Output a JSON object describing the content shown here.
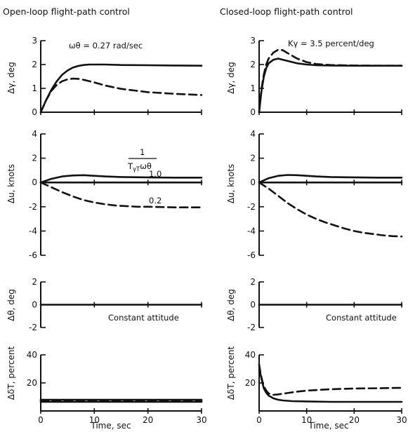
{
  "titles": {
    "left": "Open-loop flight-path control",
    "right": "Closed-loop flight-path control"
  },
  "x_axis": {
    "label": "Time, sec",
    "ticks": [
      "0",
      "10",
      "20",
      "30"
    ]
  },
  "chart_data": [
    {
      "id": "ol-gamma",
      "type": "line",
      "column": "left",
      "ylabel": "Δγ, deg",
      "ylim": [
        0,
        3
      ],
      "yticks": [
        "0",
        "1",
        "2",
        "3"
      ],
      "xlim": [
        0,
        30
      ],
      "annotations": [
        {
          "text": "ωθ = 0.27 rad/sec"
        }
      ],
      "series": [
        {
          "style": "solid",
          "x": [
            0,
            1,
            2,
            3,
            4,
            5,
            6,
            7,
            8,
            9,
            10,
            12,
            15,
            20,
            25,
            30
          ],
          "y": [
            0,
            0.5,
            0.95,
            1.3,
            1.57,
            1.75,
            1.87,
            1.94,
            1.98,
            2.0,
            2.0,
            2.0,
            1.98,
            1.97,
            1.96,
            1.95
          ]
        },
        {
          "style": "dashed",
          "x": [
            0,
            1,
            2,
            3,
            4,
            5,
            6,
            7,
            8,
            10,
            12,
            15,
            20,
            25,
            30
          ],
          "y": [
            0,
            0.5,
            0.9,
            1.15,
            1.3,
            1.38,
            1.41,
            1.4,
            1.36,
            1.25,
            1.12,
            0.98,
            0.84,
            0.77,
            0.72
          ]
        }
      ]
    },
    {
      "id": "ol-u",
      "type": "line",
      "column": "left",
      "ylabel": "Δu, knots",
      "ylim": [
        -6,
        4
      ],
      "yticks": [
        "-6",
        "-4",
        "-2",
        "0",
        "2",
        "4"
      ],
      "xlim": [
        0,
        30
      ],
      "annotations": [
        {
          "text": "1.0"
        },
        {
          "text": "0.2"
        }
      ],
      "series": [
        {
          "style": "solid",
          "x": [
            0,
            2,
            4,
            6,
            8,
            10,
            12,
            15,
            20,
            25,
            30
          ],
          "y": [
            0,
            0.3,
            0.5,
            0.58,
            0.6,
            0.55,
            0.5,
            0.45,
            0.42,
            0.4,
            0.4
          ]
        },
        {
          "style": "solid",
          "x": [
            0,
            2,
            5,
            10,
            20,
            30
          ],
          "y": [
            0,
            0,
            0,
            0,
            0,
            0
          ]
        },
        {
          "style": "dashed",
          "x": [
            0,
            2,
            4,
            6,
            8,
            10,
            12,
            14,
            16,
            18,
            20,
            25,
            30
          ],
          "y": [
            0,
            -0.4,
            -0.8,
            -1.15,
            -1.45,
            -1.65,
            -1.8,
            -1.9,
            -1.95,
            -2.0,
            -2.0,
            -2.05,
            -2.05
          ]
        }
      ]
    },
    {
      "id": "ol-theta",
      "type": "line",
      "column": "left",
      "ylabel": "Δθ, deg",
      "ylim": [
        -2,
        2
      ],
      "yticks": [
        "-2",
        "0",
        "2"
      ],
      "xlim": [
        0,
        30
      ],
      "annotations": [
        {
          "text": "Constant attitude"
        }
      ],
      "series": [
        {
          "style": "solid",
          "x": [
            0,
            30
          ],
          "y": [
            0,
            0
          ]
        }
      ]
    },
    {
      "id": "ol-delta",
      "type": "line",
      "column": "left",
      "ylabel": "ΔδT, percent",
      "ylim": [
        0,
        40
      ],
      "yticks": [
        "20",
        "40"
      ],
      "xlim": [
        0,
        30
      ],
      "series": [
        {
          "style": "solid",
          "x": [
            0,
            30
          ],
          "y": [
            6.5,
            6.5
          ]
        },
        {
          "style": "solid",
          "x": [
            0,
            30
          ],
          "y": [
            8,
            8
          ]
        },
        {
          "style": "dashed",
          "x": [
            0,
            30
          ],
          "y": [
            7.2,
            7.2
          ]
        }
      ]
    },
    {
      "id": "cl-gamma",
      "type": "line",
      "column": "right",
      "ylabel": "Δγ, deg",
      "ylim": [
        0,
        3
      ],
      "yticks": [
        "0",
        "1",
        "2",
        "3"
      ],
      "xlim": [
        0,
        30
      ],
      "annotations": [
        {
          "text": "Kγ = 3.5 percent/deg"
        }
      ],
      "series": [
        {
          "style": "solid",
          "x": [
            0,
            0.5,
            1,
            1.5,
            2,
            3,
            4,
            5,
            6,
            8,
            10,
            12,
            15,
            20,
            25,
            30
          ],
          "y": [
            0,
            0.9,
            1.5,
            1.85,
            2.05,
            2.2,
            2.25,
            2.2,
            2.15,
            2.05,
            2.0,
            1.97,
            1.96,
            1.95,
            1.95,
            1.95
          ]
        },
        {
          "style": "dashed",
          "x": [
            0,
            0.5,
            1,
            1.5,
            2,
            3,
            4,
            5,
            6,
            8,
            10,
            12,
            15,
            20,
            25,
            30
          ],
          "y": [
            0,
            1.0,
            1.6,
            2.0,
            2.25,
            2.5,
            2.62,
            2.6,
            2.48,
            2.25,
            2.1,
            2.02,
            1.98,
            1.96,
            1.95,
            1.95
          ]
        }
      ]
    },
    {
      "id": "cl-u",
      "type": "line",
      "column": "right",
      "ylabel": "Δu, knots",
      "ylim": [
        -6,
        4
      ],
      "yticks": [
        "-6",
        "-4",
        "-2",
        "0",
        "2",
        "4"
      ],
      "xlim": [
        0,
        30
      ],
      "series": [
        {
          "style": "solid",
          "x": [
            0,
            2,
            4,
            6,
            8,
            10,
            12,
            15,
            20,
            25,
            30
          ],
          "y": [
            0,
            0.35,
            0.55,
            0.62,
            0.6,
            0.55,
            0.5,
            0.45,
            0.42,
            0.4,
            0.4
          ]
        },
        {
          "style": "solid",
          "x": [
            0,
            30
          ],
          "y": [
            0,
            0
          ]
        },
        {
          "style": "dashed",
          "x": [
            0,
            2,
            4,
            6,
            8,
            10,
            12,
            14,
            16,
            18,
            20,
            22,
            24,
            26,
            28,
            30
          ],
          "y": [
            0,
            -0.5,
            -1.1,
            -1.7,
            -2.2,
            -2.65,
            -3.0,
            -3.3,
            -3.55,
            -3.8,
            -4.0,
            -4.15,
            -4.25,
            -4.35,
            -4.42,
            -4.45
          ]
        }
      ]
    },
    {
      "id": "cl-theta",
      "type": "line",
      "column": "right",
      "ylabel": "Δθ, deg",
      "ylim": [
        -2,
        2
      ],
      "yticks": [
        "-2",
        "0",
        "2"
      ],
      "xlim": [
        0,
        30
      ],
      "annotations": [
        {
          "text": "Constant attitude"
        }
      ],
      "series": [
        {
          "style": "solid",
          "x": [
            0,
            30
          ],
          "y": [
            0,
            0
          ]
        }
      ]
    },
    {
      "id": "cl-delta",
      "type": "line",
      "column": "right",
      "ylabel": "ΔδT, percent",
      "ylim": [
        0,
        40
      ],
      "yticks": [
        "20",
        "40"
      ],
      "xlim": [
        0,
        30
      ],
      "series": [
        {
          "style": "solid",
          "x": [
            0,
            0.3,
            0.7,
            1,
            1.5,
            2,
            3,
            4,
            5,
            7,
            10,
            15,
            20,
            30
          ],
          "y": [
            33,
            26,
            20,
            16,
            13,
            11,
            9,
            8,
            7.5,
            7,
            6.8,
            6.5,
            6.5,
            6.5
          ]
        },
        {
          "style": "dashed",
          "x": [
            0,
            0.3,
            0.7,
            1,
            1.5,
            2,
            3,
            4,
            6,
            8,
            10,
            15,
            20,
            25,
            30
          ],
          "y": [
            33,
            27,
            21,
            17.5,
            14.5,
            12.5,
            11.5,
            11.8,
            12.8,
            13.8,
            14.5,
            15.5,
            16,
            16.2,
            16.5
          ]
        }
      ]
    }
  ]
}
